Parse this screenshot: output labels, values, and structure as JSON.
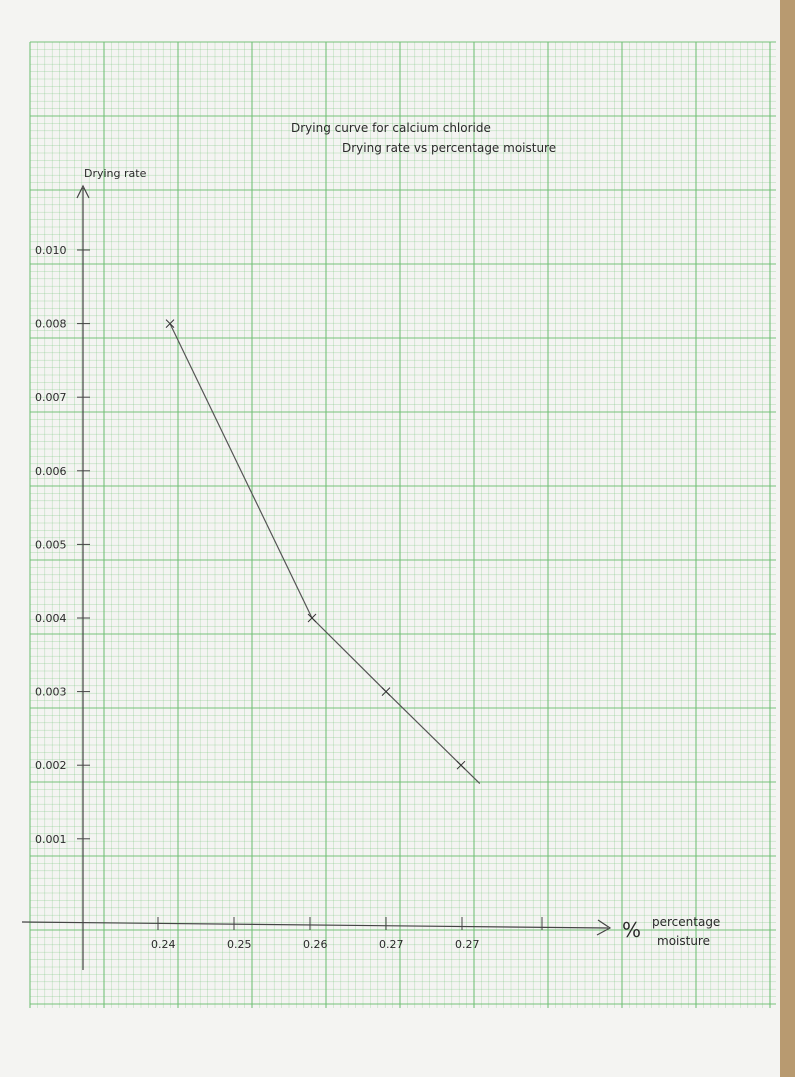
{
  "chart_data": {
    "type": "line",
    "title": "Drying curve for calcium chloride",
    "subtitle": "Drying rate vs percentage moisture",
    "ylabel": "Drying rate",
    "xlabel_symbol": "%",
    "xlabel": "percentage moisture",
    "x_tick_labels": [
      "0.24",
      "0.25",
      "0.26",
      "0.27",
      "0.27"
    ],
    "y_tick_labels": [
      "0.001",
      "0.002",
      "0.003",
      "0.004",
      "0.005",
      "0.006",
      "0.007",
      "0.008",
      "0.010"
    ],
    "series": [
      {
        "x": [
          "0.24",
          "0.26",
          "0.27",
          "0.27"
        ],
        "y": [
          0.008,
          0.004,
          0.003,
          0.002
        ]
      }
    ],
    "line_color": "#555555",
    "grid": true,
    "grid_color": "#6fbf73"
  }
}
